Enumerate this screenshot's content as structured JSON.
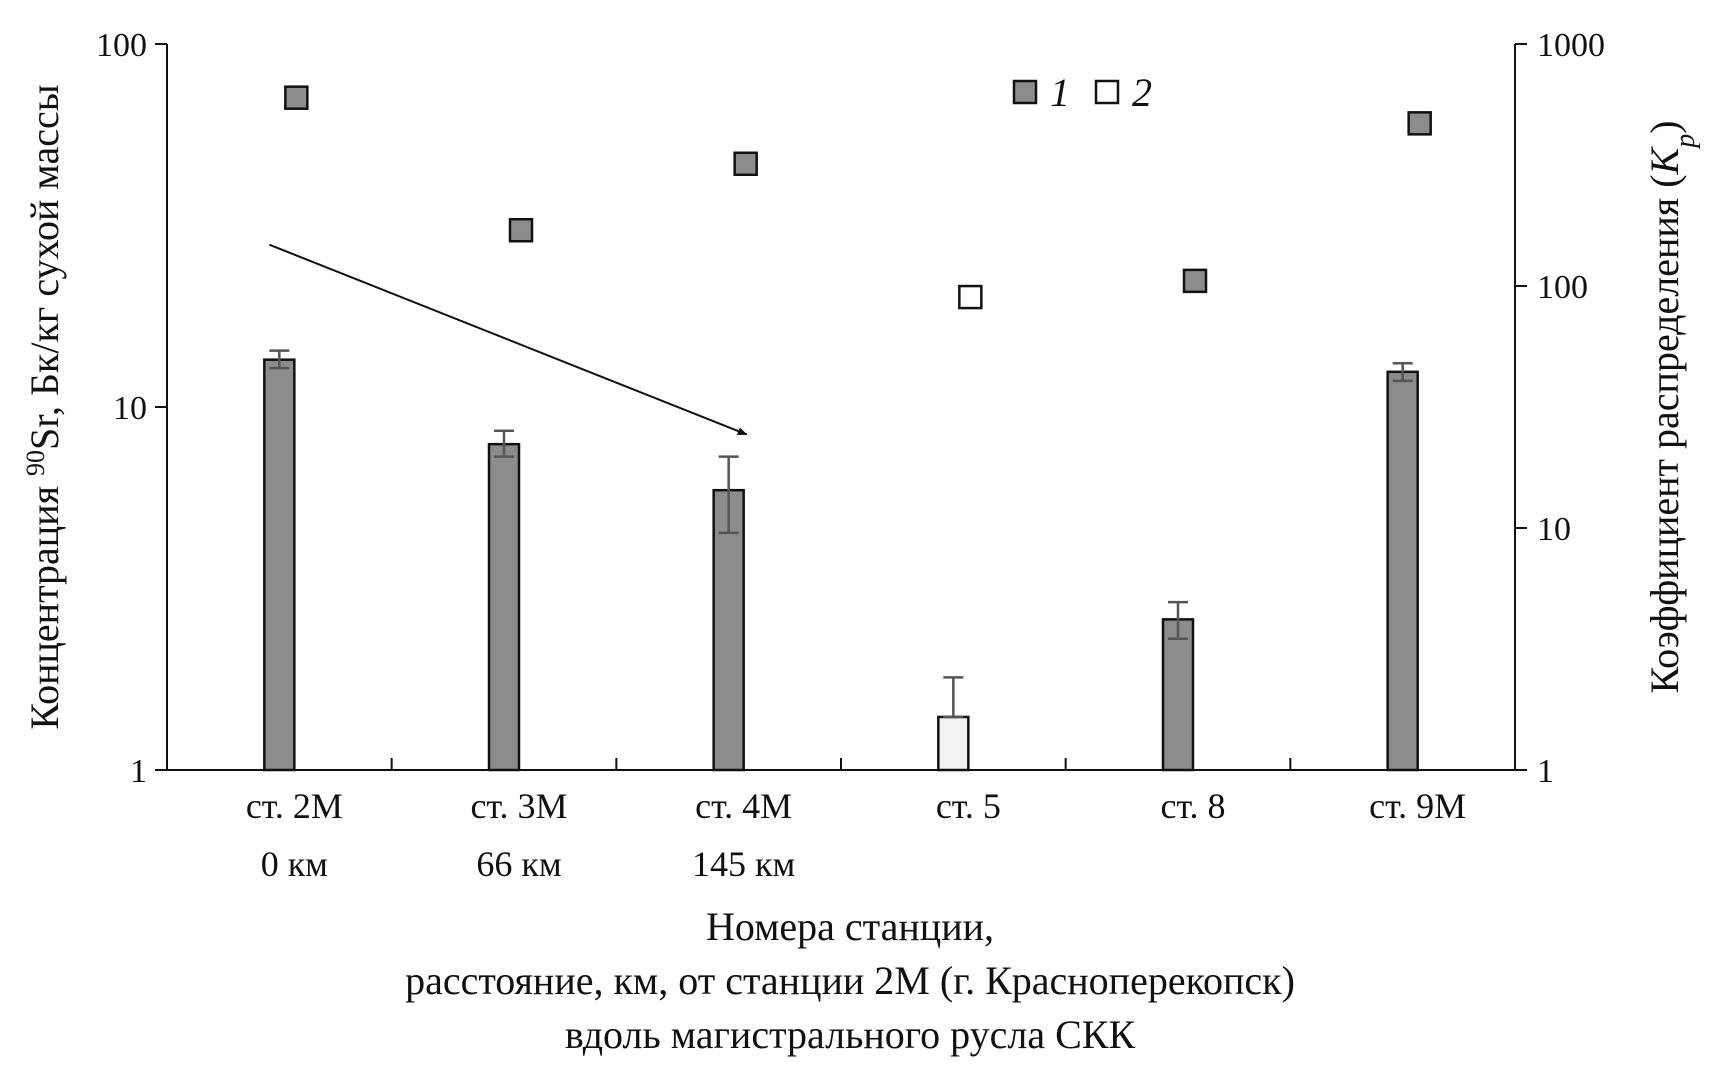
{
  "chart_data": {
    "type": "bar",
    "categories": [
      "ст. 2М",
      "ст. 3М",
      "ст. 4М",
      "ст. 5",
      "ст. 8",
      "ст. 9М"
    ],
    "distances": [
      "0 км",
      "66 км",
      "145 км",
      "",
      "",
      ""
    ],
    "bars": {
      "values": [
        13.5,
        7.9,
        5.9,
        1.4,
        2.6,
        12.5
      ],
      "err_low": [
        12.8,
        7.3,
        4.5,
        1.4,
        2.3,
        11.8
      ],
      "err_high": [
        14.3,
        8.6,
        7.3,
        1.8,
        2.9,
        13.2
      ],
      "fill": [
        "#8c8c8c",
        "#8c8c8c",
        "#8c8c8c",
        "#f2f2f2",
        "#8c8c8c",
        "#8c8c8c"
      ]
    },
    "kp": {
      "values": [
        600,
        170,
        320,
        90,
        105,
        470
      ],
      "filled": [
        true,
        true,
        true,
        false,
        true,
        true
      ]
    },
    "legend": [
      {
        "label": "1",
        "fill": "#8c8c8c"
      },
      {
        "label": "2",
        "fill": "#ffffff"
      }
    ],
    "left_axis": {
      "title_pre": "Концентрация ",
      "title_sup": "90",
      "title_post": "Sr, Бк/кг сухой массы",
      "scale": "log",
      "range": [
        1,
        100
      ],
      "ticks": [
        1,
        10,
        100
      ],
      "tick_labels": [
        "1",
        "10",
        "100"
      ]
    },
    "right_axis": {
      "title_pre": "Коэффициент распределения (",
      "title_var": "K",
      "title_sub": "p",
      "title_post": ")",
      "scale": "log",
      "range": [
        1,
        1000
      ],
      "ticks": [
        1,
        10,
        100,
        1000
      ],
      "tick_labels": [
        "1",
        "10",
        "100",
        "1000"
      ]
    },
    "xlabel_lines": [
      "Номера станции,",
      "расстояние, км, от станции 2М (г. Красноперекопск)",
      "вдоль магистрального русла СКК"
    ],
    "annotation": {
      "type": "arrow",
      "from_category": 0,
      "to_category": 2,
      "from_value": 28,
      "to_value": 8.4
    },
    "grid": false
  }
}
